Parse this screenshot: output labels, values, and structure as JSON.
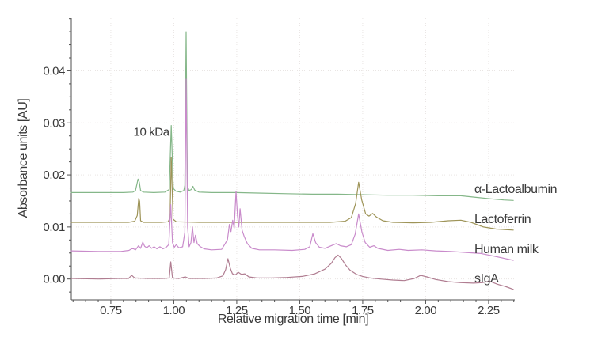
{
  "figure": {
    "background": "#ffffff"
  },
  "chart_data": {
    "type": "line",
    "title": "",
    "xlabel": "Relative migration time [min]",
    "ylabel": "Absorbance units [AU]",
    "xlim": [
      0.593,
      2.354
    ],
    "ylim": [
      -0.004,
      0.0501
    ],
    "x_ticks": [
      0.75,
      1.0,
      1.25,
      1.5,
      1.75,
      2.0,
      2.25
    ],
    "x_tick_labels": [
      "0.75",
      "1.00",
      "1.25",
      "1.50",
      "1.75",
      "2.00",
      "2.25"
    ],
    "y_ticks": [
      0.0,
      0.01,
      0.02,
      0.03,
      0.04
    ],
    "y_tick_labels": [
      "0.00",
      "0.01",
      "0.02",
      "0.03",
      "0.04"
    ],
    "x_minor_step": 0.05,
    "y_minor_step": 0.0025,
    "grid": {
      "show": true,
      "color": "#e9e5e3",
      "style": "dotted"
    },
    "axis_color": "#4f4f4f",
    "text_color": "#3a3a3a",
    "legend_position": "right-inside",
    "annotations": [
      {
        "text": "10 kDa",
        "x": 0.982,
        "y": 0.0283,
        "anchor": "end"
      }
    ],
    "series": [
      {
        "name": "α-Lactoalbumin",
        "color": "#85b789",
        "label_y": 0.0173,
        "points": [
          [
            0.593,
            0.0166
          ],
          [
            0.7,
            0.0166
          ],
          [
            0.8,
            0.0166
          ],
          [
            0.838,
            0.0167
          ],
          [
            0.848,
            0.017
          ],
          [
            0.858,
            0.0192
          ],
          [
            0.863,
            0.0186
          ],
          [
            0.868,
            0.017
          ],
          [
            0.88,
            0.0167
          ],
          [
            0.92,
            0.0166
          ],
          [
            0.965,
            0.0167
          ],
          [
            0.982,
            0.0172
          ],
          [
            0.99,
            0.0295
          ],
          [
            0.998,
            0.0174
          ],
          [
            1.008,
            0.0169
          ],
          [
            1.025,
            0.0167
          ],
          [
            1.04,
            0.017
          ],
          [
            1.044,
            0.018
          ],
          [
            1.049,
            0.0475
          ],
          [
            1.054,
            0.018
          ],
          [
            1.06,
            0.017
          ],
          [
            1.07,
            0.0172
          ],
          [
            1.076,
            0.0178
          ],
          [
            1.083,
            0.0171
          ],
          [
            1.1,
            0.0167
          ],
          [
            1.15,
            0.0166
          ],
          [
            1.247,
            0.0166
          ],
          [
            1.35,
            0.0165
          ],
          [
            1.45,
            0.0164
          ],
          [
            1.55,
            0.0163
          ],
          [
            1.65,
            0.0163
          ],
          [
            1.75,
            0.0162
          ],
          [
            1.85,
            0.0161
          ],
          [
            1.95,
            0.0161
          ],
          [
            2.05,
            0.016
          ],
          [
            2.14,
            0.016
          ],
          [
            2.2,
            0.0157
          ],
          [
            2.26,
            0.0154
          ],
          [
            2.31,
            0.0152
          ],
          [
            2.348,
            0.0151
          ]
        ]
      },
      {
        "name": "Lactoferrin",
        "color": "#9e9458",
        "label_y": 0.0115,
        "points": [
          [
            0.593,
            0.0109
          ],
          [
            0.75,
            0.0109
          ],
          [
            0.82,
            0.0109
          ],
          [
            0.845,
            0.0111
          ],
          [
            0.855,
            0.0122
          ],
          [
            0.861,
            0.0155
          ],
          [
            0.8645,
            0.0149
          ],
          [
            0.868,
            0.0112
          ],
          [
            0.88,
            0.0109
          ],
          [
            0.95,
            0.0109
          ],
          [
            0.978,
            0.011
          ],
          [
            0.985,
            0.0118
          ],
          [
            0.99,
            0.0234
          ],
          [
            0.997,
            0.0115
          ],
          [
            1.01,
            0.011
          ],
          [
            1.1,
            0.0109
          ],
          [
            1.3,
            0.0109
          ],
          [
            1.5,
            0.0109
          ],
          [
            1.62,
            0.0109
          ],
          [
            1.68,
            0.0111
          ],
          [
            1.705,
            0.0118
          ],
          [
            1.722,
            0.0145
          ],
          [
            1.734,
            0.0186
          ],
          [
            1.746,
            0.0152
          ],
          [
            1.762,
            0.0125
          ],
          [
            1.775,
            0.0121
          ],
          [
            1.79,
            0.0126
          ],
          [
            1.805,
            0.0119
          ],
          [
            1.83,
            0.0112
          ],
          [
            1.87,
            0.0109
          ],
          [
            1.95,
            0.0108
          ],
          [
            2.02,
            0.0109
          ],
          [
            2.09,
            0.0112
          ],
          [
            2.14,
            0.0113
          ],
          [
            2.18,
            0.0109
          ],
          [
            2.23,
            0.01
          ],
          [
            2.28,
            0.0096
          ],
          [
            2.348,
            0.0094
          ]
        ]
      },
      {
        "name": "Human milk",
        "color": "#c98bcb",
        "label_y": 0.0057,
        "points": [
          [
            0.593,
            0.0054
          ],
          [
            0.7,
            0.0053
          ],
          [
            0.79,
            0.0053
          ],
          [
            0.822,
            0.0055
          ],
          [
            0.836,
            0.0059
          ],
          [
            0.848,
            0.0056
          ],
          [
            0.86,
            0.0064
          ],
          [
            0.868,
            0.0059
          ],
          [
            0.877,
            0.0071
          ],
          [
            0.884,
            0.0063
          ],
          [
            0.893,
            0.006
          ],
          [
            0.902,
            0.0064
          ],
          [
            0.912,
            0.0059
          ],
          [
            0.922,
            0.0062
          ],
          [
            0.933,
            0.0058
          ],
          [
            0.945,
            0.0062
          ],
          [
            0.957,
            0.0058
          ],
          [
            0.97,
            0.0061
          ],
          [
            0.98,
            0.0066
          ],
          [
            0.988,
            0.0143
          ],
          [
            0.995,
            0.007
          ],
          [
            1.002,
            0.0061
          ],
          [
            1.01,
            0.0066
          ],
          [
            1.02,
            0.006
          ],
          [
            1.035,
            0.0062
          ],
          [
            1.044,
            0.009
          ],
          [
            1.049,
            0.0384
          ],
          [
            1.055,
            0.01
          ],
          [
            1.061,
            0.0062
          ],
          [
            1.068,
            0.007
          ],
          [
            1.074,
            0.01
          ],
          [
            1.08,
            0.007
          ],
          [
            1.086,
            0.0084
          ],
          [
            1.093,
            0.0068
          ],
          [
            1.103,
            0.0063
          ],
          [
            1.12,
            0.0058
          ],
          [
            1.15,
            0.0056
          ],
          [
            1.19,
            0.0057
          ],
          [
            1.204,
            0.0068
          ],
          [
            1.213,
            0.0076
          ],
          [
            1.221,
            0.0105
          ],
          [
            1.227,
            0.0091
          ],
          [
            1.234,
            0.0113
          ],
          [
            1.24,
            0.0098
          ],
          [
            1.247,
            0.0168
          ],
          [
            1.253,
            0.0121
          ],
          [
            1.258,
            0.01
          ],
          [
            1.263,
            0.0135
          ],
          [
            1.271,
            0.0094
          ],
          [
            1.28,
            0.0081
          ],
          [
            1.292,
            0.0068
          ],
          [
            1.31,
            0.0059
          ],
          [
            1.34,
            0.0056
          ],
          [
            1.4,
            0.0056
          ],
          [
            1.47,
            0.0055
          ],
          [
            1.52,
            0.0057
          ],
          [
            1.54,
            0.0062
          ],
          [
            1.552,
            0.0087
          ],
          [
            1.563,
            0.007
          ],
          [
            1.578,
            0.0061
          ],
          [
            1.6,
            0.0059
          ],
          [
            1.625,
            0.0064
          ],
          [
            1.645,
            0.0068
          ],
          [
            1.662,
            0.0064
          ],
          [
            1.685,
            0.0062
          ],
          [
            1.705,
            0.0066
          ],
          [
            1.72,
            0.0086
          ],
          [
            1.734,
            0.0125
          ],
          [
            1.747,
            0.009
          ],
          [
            1.76,
            0.007
          ],
          [
            1.778,
            0.0061
          ],
          [
            1.795,
            0.0064
          ],
          [
            1.81,
            0.0059
          ],
          [
            1.85,
            0.0055
          ],
          [
            1.895,
            0.0057
          ],
          [
            1.93,
            0.0055
          ],
          [
            1.985,
            0.0056
          ],
          [
            2.04,
            0.0054
          ],
          [
            2.1,
            0.0053
          ],
          [
            2.16,
            0.0051
          ],
          [
            2.22,
            0.0049
          ],
          [
            2.27,
            0.0044
          ],
          [
            2.31,
            0.004
          ],
          [
            2.348,
            0.0036
          ]
        ]
      },
      {
        "name": "sIgA",
        "color": "#b07d91",
        "label_y": 0.0001,
        "points": [
          [
            0.593,
            0.0001
          ],
          [
            0.7,
            0.0
          ],
          [
            0.78,
            0.0001
          ],
          [
            0.82,
            0.0001
          ],
          [
            0.833,
            0.0007
          ],
          [
            0.845,
            0.0002
          ],
          [
            0.9,
            0.0001
          ],
          [
            0.955,
            0.0001
          ],
          [
            0.982,
            0.0002
          ],
          [
            0.988,
            0.0033
          ],
          [
            0.995,
            0.0002
          ],
          [
            1.02,
            0.0001
          ],
          [
            1.046,
            0.0004
          ],
          [
            1.06,
            0.0001
          ],
          [
            1.12,
            0.0001
          ],
          [
            1.17,
            0.0002
          ],
          [
            1.195,
            0.0006
          ],
          [
            1.206,
            0.0018
          ],
          [
            1.215,
            0.0039
          ],
          [
            1.224,
            0.0021
          ],
          [
            1.233,
            0.001
          ],
          [
            1.245,
            0.0008
          ],
          [
            1.256,
            0.0013
          ],
          [
            1.268,
            0.0009
          ],
          [
            1.282,
            0.001
          ],
          [
            1.298,
            0.0004
          ],
          [
            1.33,
            0.0002
          ],
          [
            1.39,
            0.0002
          ],
          [
            1.45,
            0.0003
          ],
          [
            1.51,
            0.0005
          ],
          [
            1.56,
            0.001
          ],
          [
            1.6,
            0.0019
          ],
          [
            1.625,
            0.003
          ],
          [
            1.64,
            0.0041
          ],
          [
            1.652,
            0.0046
          ],
          [
            1.665,
            0.004
          ],
          [
            1.682,
            0.0027
          ],
          [
            1.7,
            0.0017
          ],
          [
            1.725,
            0.0009
          ],
          [
            1.75,
            0.0005
          ],
          [
            1.78,
            0.0002
          ],
          [
            1.82,
            0.0
          ],
          [
            1.87,
            -0.0002
          ],
          [
            1.915,
            -0.0003
          ],
          [
            1.955,
            0.0001
          ],
          [
            1.98,
            0.0007
          ],
          [
            2.005,
            0.0004
          ],
          [
            2.04,
            -0.0001
          ],
          [
            2.09,
            -0.0005
          ],
          [
            2.14,
            -0.0007
          ],
          [
            2.19,
            -0.0008
          ],
          [
            2.225,
            -0.0007
          ],
          [
            2.253,
            -0.0004
          ],
          [
            2.285,
            -0.001
          ],
          [
            2.32,
            -0.0015
          ],
          [
            2.348,
            -0.002
          ]
        ]
      }
    ]
  }
}
